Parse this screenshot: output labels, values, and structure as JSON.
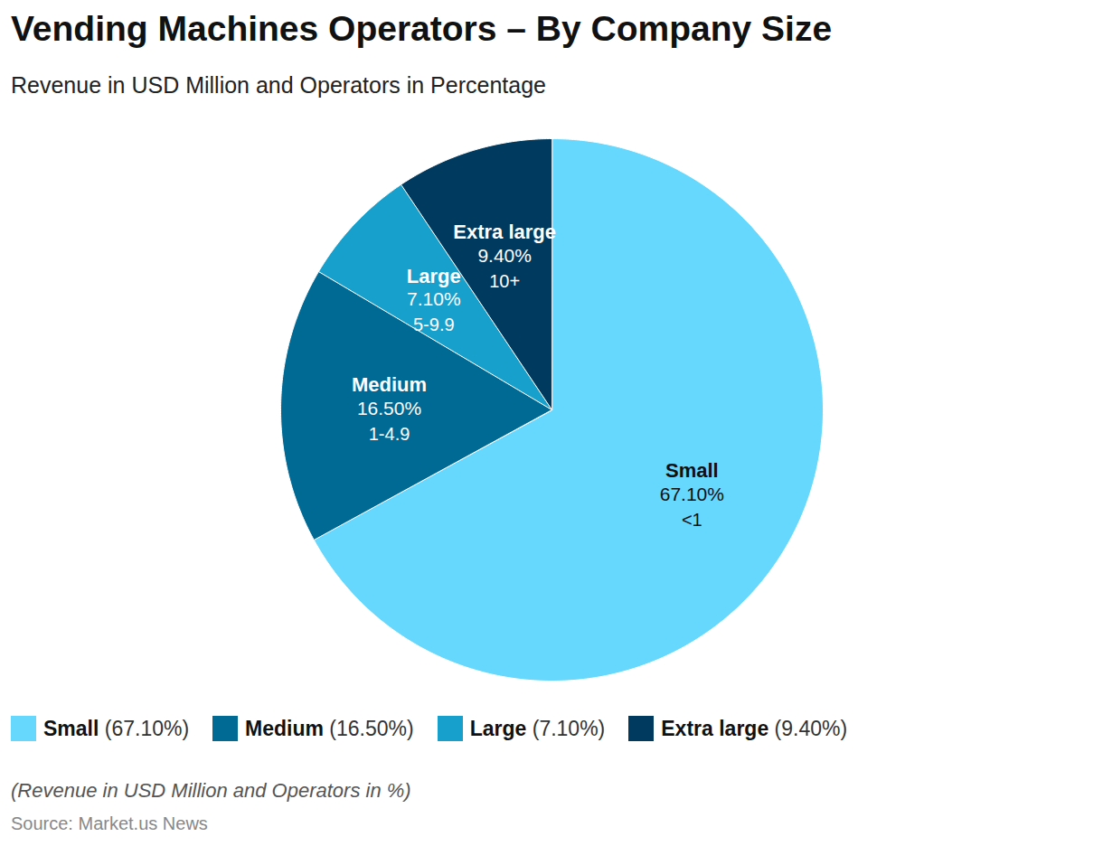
{
  "chart_data": {
    "type": "pie",
    "title": "Vending Machines Operators – By Company Size",
    "subtitle": "Revenue in USD Million and Operators in Percentage",
    "categories": [
      "Small",
      "Medium",
      "Large",
      "Extra large"
    ],
    "values": [
      67.1,
      16.5,
      7.1,
      9.4
    ],
    "value_labels": [
      "67.10%",
      "16.50%",
      "7.10%",
      "9.40%"
    ],
    "revenue_ranges": [
      "<1",
      "1-4.9",
      "5-9.9",
      "10+"
    ],
    "colors": [
      "#66d7fd",
      "#006994",
      "#18a0cc",
      "#003a5e"
    ],
    "data_labels": true,
    "legend": "bottom",
    "tick_labels": false,
    "caption": "(Revenue in USD Million and Operators in %)",
    "source": "Source: Market.us News"
  }
}
